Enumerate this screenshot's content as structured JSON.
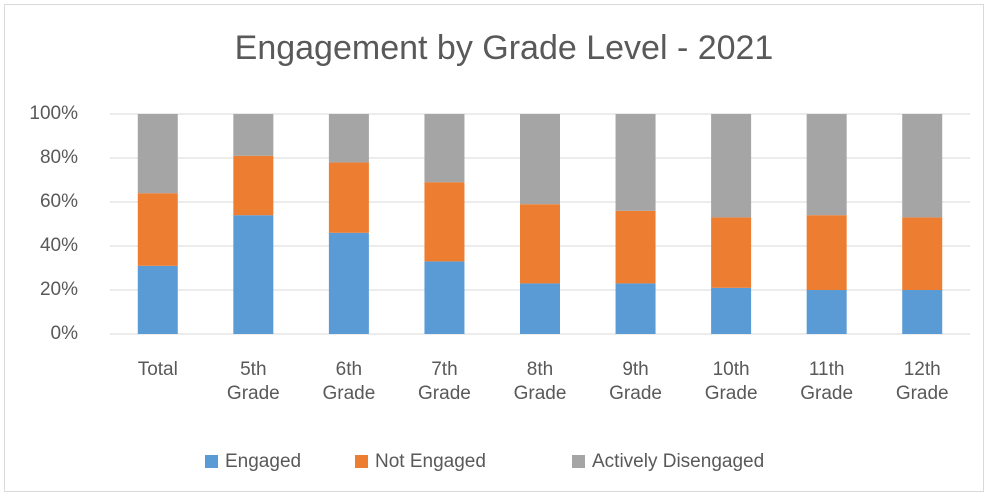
{
  "chart_data": {
    "type": "stacked_bar",
    "title": "Engagement by Grade Level - 2021",
    "categories": [
      "Total",
      "5th Grade",
      "6th Grade",
      "7th Grade",
      "8th Grade",
      "9th Grade",
      "10th Grade",
      "11th Grade",
      "12th Grade"
    ],
    "series": [
      {
        "name": "Engaged",
        "color": "#5b9bd5",
        "values": [
          31,
          54,
          46,
          33,
          23,
          23,
          21,
          20,
          20
        ]
      },
      {
        "name": "Not Engaged",
        "color": "#ed7d31",
        "values": [
          33,
          27,
          32,
          36,
          36,
          33,
          32,
          34,
          33
        ]
      },
      {
        "name": "Actively Disengaged",
        "color": "#a5a5a5",
        "values": [
          36,
          19,
          22,
          31,
          41,
          44,
          47,
          46,
          47
        ]
      }
    ],
    "ylim": [
      0,
      100
    ],
    "yticks": [
      {
        "value": 0,
        "label": "0%"
      },
      {
        "value": 20,
        "label": "20%"
      },
      {
        "value": 40,
        "label": "40%"
      },
      {
        "value": 60,
        "label": "60%"
      },
      {
        "value": 80,
        "label": "80%"
      },
      {
        "value": 100,
        "label": "100%"
      }
    ],
    "grid": true,
    "legend": "bottom"
  }
}
